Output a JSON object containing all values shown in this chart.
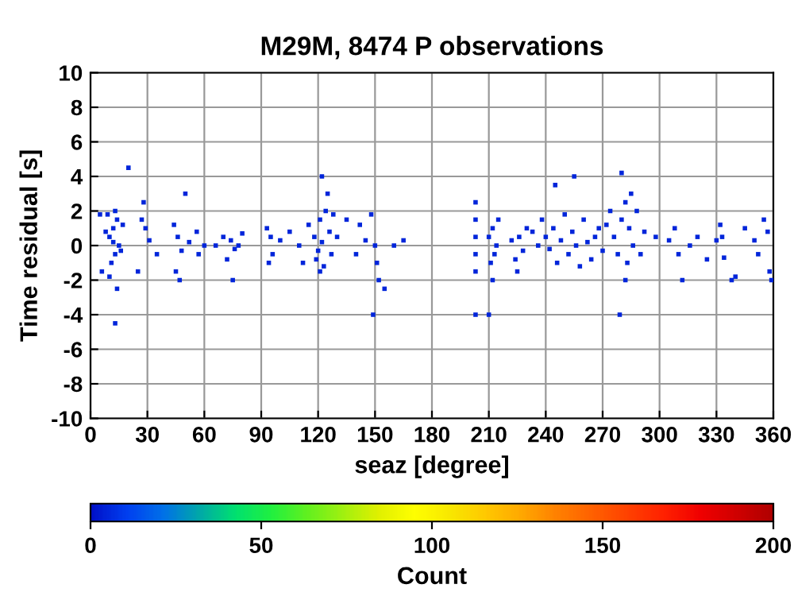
{
  "chart_data": {
    "type": "scatter",
    "title": "M29M, 8474 P observations",
    "xlabel": "seaz [degree]",
    "ylabel": "Time residual [s]",
    "clabel": "Count",
    "x": [
      10,
      12,
      13,
      14,
      11,
      15,
      12,
      9,
      16,
      13,
      10,
      14,
      8,
      17,
      6,
      5,
      13,
      20,
      28,
      27,
      29,
      25,
      31,
      35,
      44,
      46,
      48,
      45,
      47,
      50,
      52,
      56,
      57,
      60,
      66,
      70,
      74,
      76,
      78,
      80,
      72,
      75,
      93,
      95,
      96,
      94,
      100,
      105,
      110,
      112,
      115,
      118,
      120,
      122,
      121,
      124,
      125,
      126,
      127,
      123,
      119,
      128,
      130,
      122,
      121,
      135,
      140,
      142,
      145,
      148,
      150,
      151,
      152,
      149,
      155,
      160,
      165,
      203,
      203,
      203,
      203,
      203,
      203,
      210,
      212,
      213,
      211,
      214,
      215,
      212,
      210,
      222,
      224,
      225,
      226,
      230,
      228,
      233,
      236,
      238,
      240,
      242,
      244,
      246,
      248,
      250,
      252,
      254,
      256,
      258,
      260,
      262,
      264,
      266,
      268,
      270,
      272,
      274,
      276,
      278,
      280,
      282,
      284,
      286,
      288,
      283,
      285,
      282,
      279,
      290,
      292,
      245,
      255,
      280,
      298,
      305,
      308,
      310,
      312,
      316,
      320,
      325,
      330,
      332,
      333,
      334,
      338,
      340,
      345,
      350,
      352,
      355,
      357,
      358,
      359
    ],
    "values": [
      0.5,
      1,
      -0.5,
      1.5,
      -1,
      0,
      0.2,
      1.8,
      -0.3,
      2,
      -1.8,
      -2.5,
      0.8,
      1.2,
      -1.5,
      1.8,
      -4.5,
      4.5,
      2.5,
      1.5,
      1,
      -1.5,
      0.3,
      -0.5,
      1.2,
      0.5,
      -0.3,
      -1.5,
      -2,
      3,
      0.2,
      0.8,
      -0.5,
      0,
      0,
      0.5,
      0.3,
      -0.2,
      0,
      0.7,
      -0.8,
      -2,
      1,
      0.5,
      -0.5,
      -1,
      0.3,
      0.8,
      0,
      -1,
      1.2,
      0.5,
      -0.3,
      0.2,
      1.5,
      2,
      3,
      0.8,
      -0.5,
      -1.2,
      -0.8,
      1.8,
      0.5,
      4,
      -1.5,
      1.5,
      -0.5,
      1.2,
      0.3,
      1.8,
      0,
      -1,
      -2,
      -4,
      -2.5,
      0,
      0.3,
      2.5,
      1.5,
      0.5,
      -0.5,
      -1.5,
      -4,
      0.5,
      1,
      -0.5,
      -1,
      0,
      1.5,
      -2,
      -4,
      0.3,
      -0.8,
      -1.5,
      0.5,
      1,
      -0.3,
      0.8,
      0,
      1.5,
      0.5,
      -0.2,
      1,
      -1,
      0.3,
      1.8,
      -0.5,
      0.8,
      0,
      -1.2,
      1.5,
      0.2,
      -0.8,
      0.5,
      1,
      -0.3,
      1.2,
      2,
      0.5,
      -0.5,
      1.5,
      2.5,
      1,
      0,
      2,
      -1,
      3,
      -2,
      -4,
      -0.5,
      0.8,
      3.5,
      4,
      4.2,
      0.5,
      0.3,
      1,
      -0.5,
      -2,
      0,
      0.5,
      -0.8,
      0.3,
      1.2,
      0.5,
      -0.7,
      -2,
      -1.8,
      1,
      0.3,
      -0.5,
      1.5,
      0.8,
      -1.5,
      -2
    ],
    "cvalues": [
      5,
      5,
      5,
      5,
      5,
      5,
      5,
      5,
      5,
      5,
      5,
      5,
      5,
      5,
      5,
      5,
      5,
      5,
      5,
      5,
      5,
      5,
      5,
      5,
      5,
      5,
      5,
      5,
      5,
      5,
      5,
      5,
      5,
      5,
      5,
      5,
      5,
      5,
      5,
      5,
      5,
      5,
      5,
      5,
      5,
      5,
      5,
      5,
      5,
      5,
      5,
      5,
      5,
      5,
      5,
      5,
      5,
      5,
      5,
      5,
      5,
      5,
      5,
      5,
      5,
      5,
      5,
      5,
      5,
      5,
      5,
      5,
      5,
      5,
      5,
      5,
      5,
      5,
      5,
      5,
      5,
      5,
      5,
      5,
      5,
      5,
      5,
      5,
      5,
      5,
      5,
      5,
      5,
      5,
      5,
      5,
      5,
      5,
      5,
      5,
      5,
      5,
      5,
      5,
      5,
      5,
      5,
      5,
      5,
      5,
      5,
      5,
      5,
      5,
      5,
      5,
      5,
      5,
      5,
      5,
      5,
      5,
      5,
      5,
      5,
      5,
      5,
      5,
      5,
      5,
      5,
      5,
      5,
      5,
      5,
      5,
      5,
      5,
      5,
      5,
      5,
      5,
      5,
      5,
      5,
      5,
      5,
      5,
      5,
      5,
      5,
      5,
      5,
      5,
      5
    ],
    "xlim": [
      0,
      360
    ],
    "xticks": [
      0,
      30,
      60,
      90,
      120,
      150,
      180,
      210,
      240,
      270,
      300,
      330,
      360
    ],
    "ylim": [
      -10,
      10
    ],
    "yticks": [
      -10,
      -8,
      -6,
      -4,
      -2,
      0,
      2,
      4,
      6,
      8,
      10
    ],
    "clim": [
      0,
      200
    ],
    "cticks": [
      0,
      50,
      100,
      150,
      200
    ],
    "grid": true,
    "marker": "square"
  }
}
